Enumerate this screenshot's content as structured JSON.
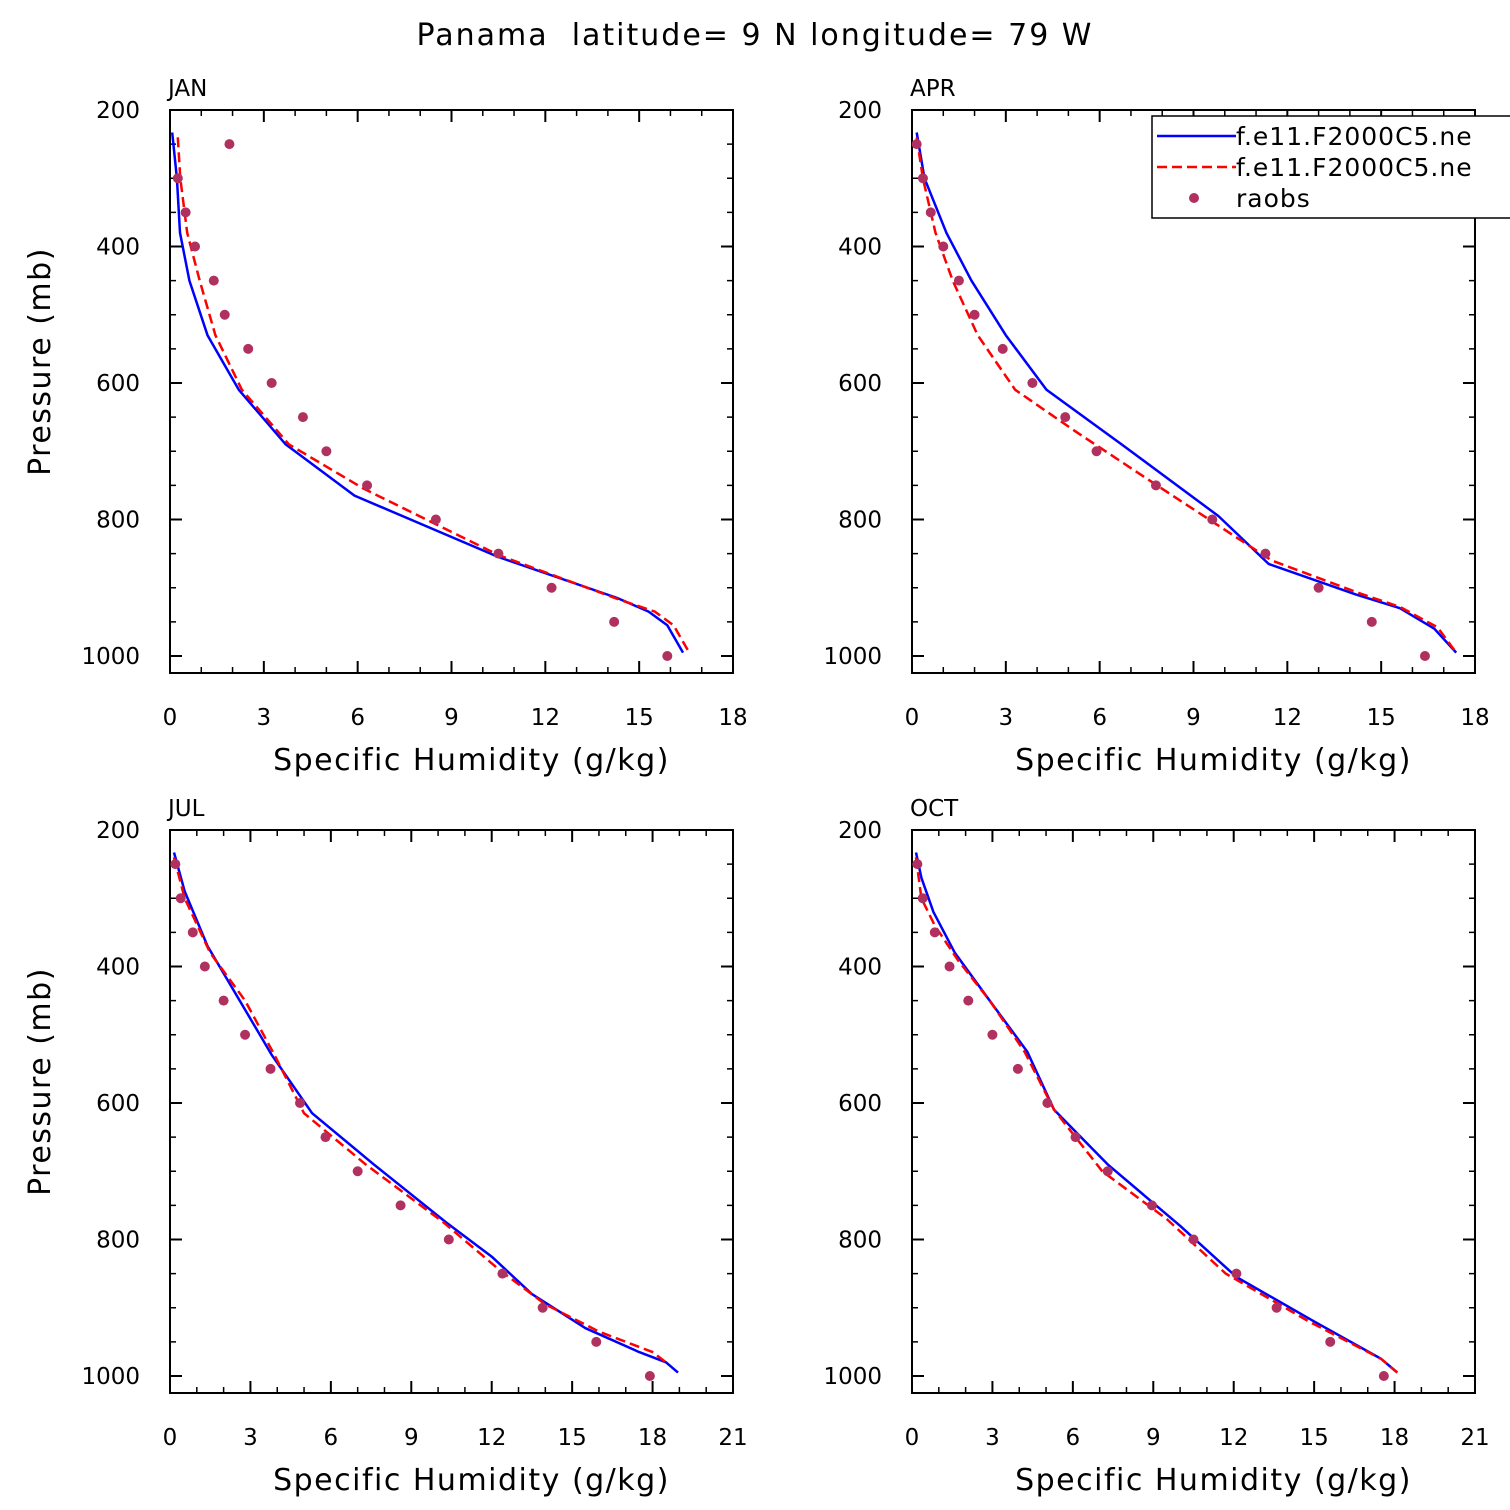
{
  "title": "Panama  latitude= 9 N longitude= 79 W",
  "legend": {
    "position": "top-right",
    "entries": [
      {
        "label": "f.e11.F2000C5.ne",
        "color": "#0000ff",
        "style": "solid"
      },
      {
        "label": "f.e11.F2000C5.ne",
        "color": "#ff0000",
        "style": "dashed"
      },
      {
        "label": "raobs",
        "color": "#b03060",
        "style": "marker"
      }
    ]
  },
  "chart_data": [
    {
      "type": "line",
      "panel_title": "JAN",
      "xlabel": "Specific Humidity (g/kg)",
      "ylabel": "Pressure (mb)",
      "xlim": [
        0,
        18
      ],
      "xticks": [
        "0",
        "3",
        "6",
        "9",
        "12",
        "15",
        "18"
      ],
      "ylim": [
        200,
        1000
      ],
      "yticks": [
        "200",
        "400",
        "600",
        "800",
        "1000"
      ],
      "y_inverted": true,
      "series": [
        {
          "color": "#0000ff",
          "style": "solid",
          "x": [
            0.07,
            0.22,
            0.32,
            0.62,
            1.2,
            2.2,
            3.7,
            5.9,
            10.5,
            14.3,
            15.3,
            15.9,
            16.4
          ],
          "y": [
            233,
            300,
            380,
            450,
            530,
            610,
            690,
            765,
            855,
            915,
            935,
            955,
            995
          ]
        },
        {
          "color": "#ff0000",
          "style": "dashed",
          "x": [
            0.25,
            0.33,
            0.55,
            0.95,
            1.45,
            2.3,
            3.8,
            6.2,
            10.5,
            14.4,
            15.5,
            16.1,
            16.6
          ],
          "y": [
            240,
            300,
            380,
            450,
            530,
            610,
            690,
            755,
            852,
            918,
            935,
            955,
            995
          ]
        },
        {
          "color": "#b03060",
          "style": "marker",
          "x": [
            1.9,
            0.25,
            0.5,
            0.8,
            1.4,
            1.75,
            2.5,
            3.25,
            4.25,
            5.0,
            6.3,
            8.5,
            10.5,
            12.2,
            14.2,
            15.9
          ],
          "y": [
            250,
            300,
            350,
            400,
            450,
            500,
            550,
            600,
            650,
            700,
            750,
            800,
            850,
            900,
            950,
            1000
          ]
        }
      ]
    },
    {
      "type": "line",
      "panel_title": "APR",
      "xlabel": "Specific Humidity (g/kg)",
      "ylabel": "",
      "xlim": [
        0,
        18
      ],
      "xticks": [
        "0",
        "3",
        "6",
        "9",
        "12",
        "15",
        "18"
      ],
      "ylim": [
        200,
        1000
      ],
      "yticks": [
        "200",
        "400",
        "600",
        "800",
        "1000"
      ],
      "y_inverted": true,
      "series": [
        {
          "color": "#0000ff",
          "style": "solid",
          "x": [
            0.15,
            0.4,
            1.1,
            1.9,
            3.0,
            4.3,
            6.7,
            9.8,
            11.4,
            14.2,
            15.6,
            16.7,
            17.4
          ],
          "y": [
            233,
            300,
            380,
            450,
            530,
            610,
            690,
            795,
            865,
            910,
            930,
            960,
            995
          ]
        },
        {
          "color": "#ff0000",
          "style": "dashed",
          "x": [
            0.15,
            0.35,
            0.75,
            1.3,
            2.1,
            3.3,
            5.2,
            8.0,
            11.5,
            14.3,
            15.6,
            16.8,
            17.4
          ],
          "y": [
            240,
            300,
            380,
            450,
            530,
            610,
            670,
            755,
            860,
            908,
            928,
            958,
            995
          ]
        },
        {
          "color": "#b03060",
          "style": "marker",
          "x": [
            0.15,
            0.35,
            0.6,
            1.0,
            1.5,
            2.0,
            2.9,
            3.85,
            4.9,
            5.9,
            7.8,
            9.6,
            11.3,
            13.0,
            14.7,
            16.4
          ],
          "y": [
            250,
            300,
            350,
            400,
            450,
            500,
            550,
            600,
            650,
            700,
            750,
            800,
            850,
            900,
            950,
            1000
          ]
        }
      ]
    },
    {
      "type": "line",
      "panel_title": "JUL",
      "xlabel": "Specific Humidity (g/kg)",
      "ylabel": "Pressure (mb)",
      "xlim": [
        0,
        21
      ],
      "xticks": [
        "0",
        "3",
        "6",
        "9",
        "12",
        "15",
        "18",
        "21"
      ],
      "ylim": [
        200,
        1000
      ],
      "yticks": [
        "200",
        "400",
        "600",
        "800",
        "1000"
      ],
      "y_inverted": true,
      "series": [
        {
          "color": "#0000ff",
          "style": "solid",
          "x": [
            0.15,
            0.55,
            1.4,
            2.6,
            3.8,
            5.3,
            7.6,
            10.3,
            12.0,
            13.5,
            15.5,
            17.5,
            18.5,
            18.95
          ],
          "y": [
            233,
            290,
            370,
            450,
            530,
            615,
            690,
            775,
            825,
            880,
            930,
            965,
            980,
            995
          ]
        },
        {
          "color": "#ff0000",
          "style": "dashed",
          "x": [
            0.15,
            0.55,
            1.5,
            2.8,
            3.9,
            5.0,
            7.3,
            10.2,
            12.3,
            14.0,
            16.0,
            18.0,
            18.5
          ],
          "y": [
            240,
            300,
            380,
            450,
            530,
            615,
            690,
            775,
            845,
            895,
            935,
            965,
            980
          ]
        },
        {
          "color": "#b03060",
          "style": "marker",
          "x": [
            0.2,
            0.4,
            0.85,
            1.3,
            2.0,
            2.8,
            3.75,
            4.85,
            5.8,
            7.0,
            8.6,
            10.4,
            12.4,
            13.9,
            15.9,
            17.9
          ],
          "y": [
            250,
            300,
            350,
            400,
            450,
            500,
            550,
            600,
            650,
            700,
            750,
            800,
            850,
            900,
            950,
            1000
          ]
        }
      ]
    },
    {
      "type": "line",
      "panel_title": "OCT",
      "xlabel": "Specific Humidity (g/kg)",
      "ylabel": "",
      "xlim": [
        0,
        21
      ],
      "xticks": [
        "0",
        "3",
        "6",
        "9",
        "12",
        "15",
        "18",
        "21"
      ],
      "ylim": [
        200,
        1000
      ],
      "yticks": [
        "200",
        "400",
        "600",
        "800",
        "1000"
      ],
      "y_inverted": true,
      "series": [
        {
          "color": "#0000ff",
          "style": "solid",
          "x": [
            0.15,
            0.35,
            0.8,
            1.6,
            2.9,
            4.3,
            5.3,
            7.3,
            10.0,
            12.1,
            15.0,
            17.5,
            18.1
          ],
          "y": [
            233,
            270,
            320,
            380,
            450,
            525,
            610,
            690,
            780,
            855,
            920,
            975,
            995
          ]
        },
        {
          "color": "#ff0000",
          "style": "dashed",
          "x": [
            0.15,
            0.35,
            0.85,
            1.7,
            2.9,
            4.2,
            5.3,
            7.1,
            9.5,
            11.7,
            14.8,
            17.5,
            18.1
          ],
          "y": [
            240,
            300,
            340,
            390,
            450,
            525,
            610,
            700,
            770,
            850,
            920,
            975,
            995
          ]
        },
        {
          "color": "#b03060",
          "style": "marker",
          "x": [
            0.2,
            0.4,
            0.85,
            1.4,
            2.1,
            3.0,
            3.95,
            5.05,
            6.1,
            7.3,
            8.95,
            10.5,
            12.1,
            13.6,
            15.6,
            17.6
          ],
          "y": [
            250,
            300,
            350,
            400,
            450,
            500,
            550,
            600,
            650,
            700,
            750,
            800,
            850,
            900,
            950,
            1000
          ]
        }
      ]
    }
  ]
}
